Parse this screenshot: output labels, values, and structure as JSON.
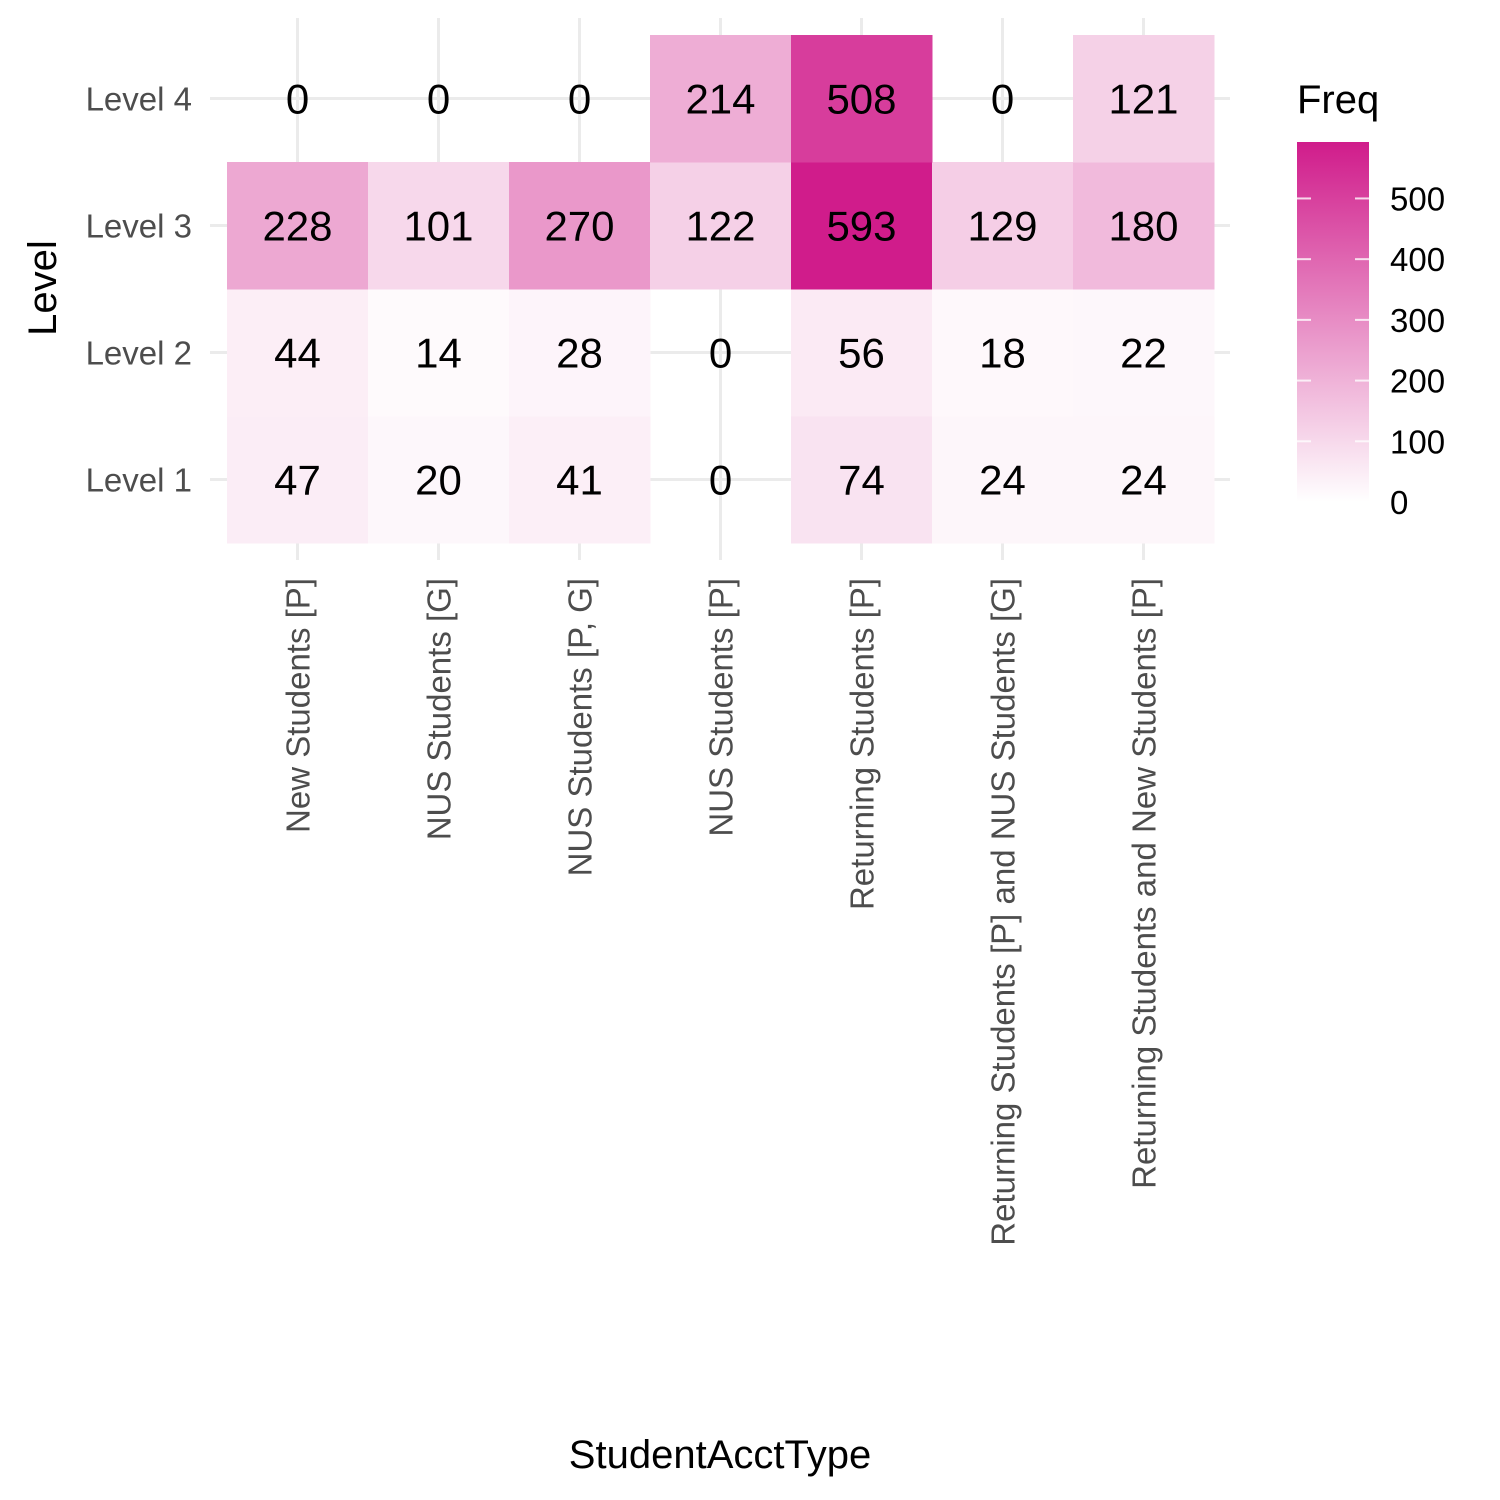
{
  "chart_data": {
    "type": "heatmap",
    "xlabel": "StudentAcctType",
    "ylabel": "Level",
    "x_categories": [
      "New Students [P]",
      "NUS Students [G]",
      "NUS Students [P, G]",
      "NUS Students [P]",
      "Returning Students [P]",
      "Returning Students [P] and NUS Students [G]",
      "Returning Students and New Students [P]"
    ],
    "y_categories": [
      "Level 1",
      "Level 2",
      "Level 3",
      "Level 4"
    ],
    "values": [
      [
        47,
        20,
        41,
        0,
        74,
        24,
        24
      ],
      [
        44,
        14,
        28,
        0,
        56,
        18,
        22
      ],
      [
        228,
        101,
        270,
        122,
        593,
        129,
        180
      ],
      [
        0,
        0,
        0,
        214,
        508,
        0,
        121
      ]
    ],
    "legend": {
      "title": "Freq",
      "ticks": [
        0,
        100,
        200,
        300,
        400,
        500
      ],
      "range": [
        0,
        593
      ],
      "low_color": "#ffffff",
      "high_color": "#d01c8b"
    },
    "grid": true,
    "legend_position": "right"
  }
}
